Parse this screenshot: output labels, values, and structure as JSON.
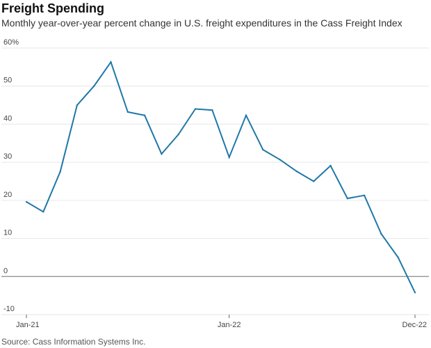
{
  "chart_data": {
    "type": "line",
    "title": "Freight Spending",
    "subtitle": "Monthly year-over-year percent change in U.S. freight expenditures in the Cass Freight Index",
    "source": "Source: Cass Information Systems Inc.",
    "x": [
      "Jan-21",
      "Feb-21",
      "Mar-21",
      "Apr-21",
      "May-21",
      "Jun-21",
      "Jul-21",
      "Aug-21",
      "Sep-21",
      "Oct-21",
      "Nov-21",
      "Dec-21",
      "Jan-22",
      "Feb-22",
      "Mar-22",
      "Apr-22",
      "May-22",
      "Jun-22",
      "Jul-22",
      "Aug-22",
      "Sep-22",
      "Oct-22",
      "Nov-22",
      "Dec-22"
    ],
    "x_tick_labels": [
      "Jan-21",
      "Jan-22",
      "Dec-22"
    ],
    "series": [
      {
        "values": [
          19.6,
          17.0,
          27.5,
          45.0,
          50.0,
          56.3,
          43.2,
          42.3,
          32.2,
          37.3,
          44.0,
          43.7,
          31.3,
          42.3,
          33.3,
          30.7,
          27.6,
          25.0,
          29.1,
          20.5,
          21.3,
          11.2,
          5.0,
          -4.2
        ],
        "color": "#1f77a8"
      }
    ],
    "ylim": [
      -10,
      60
    ],
    "y_ticks": [
      -10,
      0,
      10,
      20,
      30,
      40,
      50,
      60
    ],
    "y_tick_labels": [
      "-10",
      "0",
      "10",
      "20",
      "30",
      "40",
      "50",
      "60%"
    ],
    "grid": true,
    "zero_line_color": "#888888",
    "grid_color": "#e6e6e6"
  }
}
